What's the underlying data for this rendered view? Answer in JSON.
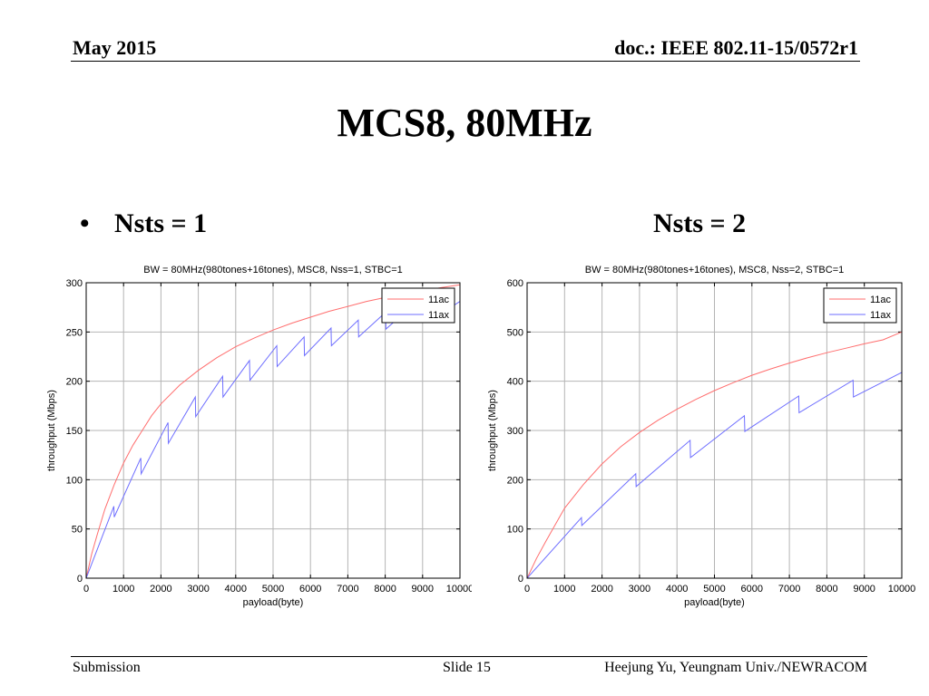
{
  "header": {
    "left": "May 2015",
    "right": "doc.: IEEE 802.11-15/0572r1"
  },
  "slide_title": "MCS8, 80MHz",
  "bullets": {
    "dot": "•",
    "left": "Nsts = 1",
    "right": "Nsts = 2"
  },
  "footer": {
    "left": "Submission",
    "center": "Slide 15",
    "right": "Heejung Yu, Yeungnam Univ./NEWRACOM"
  },
  "colors": {
    "11ac": "#ff6e6e",
    "11ax": "#6e6eff",
    "grid": "#b4b4b4"
  },
  "chart_data": [
    {
      "type": "line",
      "title": "BW = 80MHz(980tones+16tones), MSC8, Nss=1, STBC=1",
      "xlabel": "payload(byte)",
      "ylabel": "throughput (Mbps)",
      "xlim": [
        0,
        10000
      ],
      "ylim": [
        0,
        300
      ],
      "xticks": [
        0,
        1000,
        2000,
        3000,
        4000,
        5000,
        6000,
        7000,
        8000,
        9000,
        10000
      ],
      "yticks": [
        0,
        50,
        100,
        150,
        200,
        250,
        300
      ],
      "grid": true,
      "legend_position": "top-right",
      "series": [
        {
          "name": "11ac",
          "points": [
            [
              0,
              0
            ],
            [
              150,
              25
            ],
            [
              300,
              45
            ],
            [
              500,
              70
            ],
            [
              750,
              95
            ],
            [
              1000,
              117
            ],
            [
              1250,
              135
            ],
            [
              1500,
              150
            ],
            [
              1750,
              165
            ],
            [
              2000,
              177
            ],
            [
              2500,
              196
            ],
            [
              3000,
              211
            ],
            [
              3500,
              224
            ],
            [
              4000,
              235
            ],
            [
              4500,
              244
            ],
            [
              5000,
              252
            ],
            [
              5500,
              259
            ],
            [
              6000,
              265
            ],
            [
              6500,
              271
            ],
            [
              7000,
              276
            ],
            [
              7500,
              281
            ],
            [
              8000,
              285
            ],
            [
              8500,
              289
            ],
            [
              9000,
              292
            ],
            [
              9500,
              295
            ],
            [
              10000,
              298
            ]
          ]
        },
        {
          "name": "11ax",
          "points": [
            [
              0,
              0
            ],
            [
              740,
              73
            ],
            [
              750,
              62
            ],
            [
              1460,
              122
            ],
            [
              1470,
              106
            ],
            [
              2190,
              158
            ],
            [
              2200,
              137
            ],
            [
              2920,
              184
            ],
            [
              2930,
              164
            ],
            [
              3650,
              205
            ],
            [
              3660,
              184
            ],
            [
              4370,
              221
            ],
            [
              4380,
              201
            ],
            [
              5100,
              236
            ],
            [
              5110,
              215
            ],
            [
              5830,
              245
            ],
            [
              5840,
              226
            ],
            [
              6550,
              254
            ],
            [
              6560,
              236
            ],
            [
              7280,
              262
            ],
            [
              7290,
              245
            ],
            [
              8010,
              270
            ],
            [
              8020,
              253
            ],
            [
              8730,
              277
            ],
            [
              8740,
              261
            ],
            [
              9460,
              284
            ],
            [
              9470,
              268
            ],
            [
              10000,
              281
            ]
          ]
        }
      ]
    },
    {
      "type": "line",
      "title": "BW = 80MHz(980tones+16tones), MSC8, Nss=2, STBC=1",
      "xlabel": "payload(byte)",
      "ylabel": "throughput (Mbps)",
      "xlim": [
        0,
        10000
      ],
      "ylim": [
        0,
        600
      ],
      "xticks": [
        0,
        1000,
        2000,
        3000,
        4000,
        5000,
        6000,
        7000,
        8000,
        9000,
        10000
      ],
      "yticks": [
        0,
        100,
        200,
        300,
        400,
        500,
        600
      ],
      "grid": true,
      "legend_position": "top-right",
      "series": [
        {
          "name": "11ac",
          "points": [
            [
              0,
              0
            ],
            [
              250,
              40
            ],
            [
              500,
              75
            ],
            [
              1000,
              142
            ],
            [
              1500,
              190
            ],
            [
              2000,
              232
            ],
            [
              2500,
              267
            ],
            [
              3000,
              296
            ],
            [
              3500,
              321
            ],
            [
              4000,
              343
            ],
            [
              4500,
              363
            ],
            [
              5000,
              381
            ],
            [
              5500,
              397
            ],
            [
              6000,
              412
            ],
            [
              6500,
              425
            ],
            [
              7000,
              437
            ],
            [
              7500,
              448
            ],
            [
              8000,
              458
            ],
            [
              8500,
              467
            ],
            [
              9000,
              476
            ],
            [
              9500,
              484
            ],
            [
              10000,
              500
            ]
          ]
        },
        {
          "name": "11ax",
          "points": [
            [
              0,
              0
            ],
            [
              1450,
              123
            ],
            [
              1460,
              107
            ],
            [
              2900,
              212
            ],
            [
              2910,
              186
            ],
            [
              4350,
              280
            ],
            [
              4360,
              245
            ],
            [
              5800,
              330
            ],
            [
              5810,
              298
            ],
            [
              7250,
              370
            ],
            [
              7260,
              336
            ],
            [
              8700,
              402
            ],
            [
              8710,
              368
            ],
            [
              10000,
              418
            ]
          ]
        }
      ]
    }
  ]
}
